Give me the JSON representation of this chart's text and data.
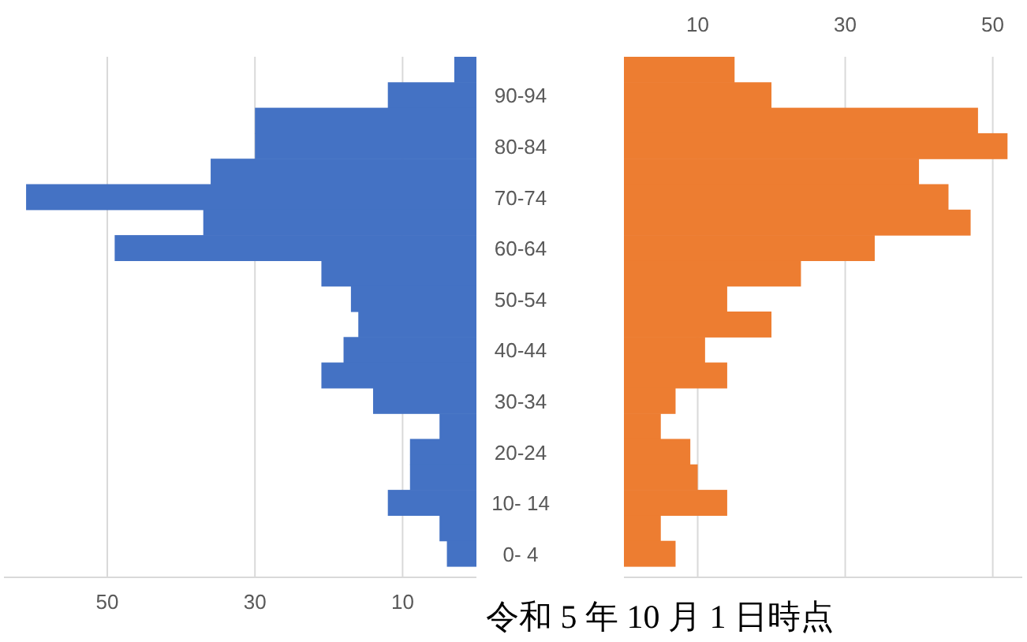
{
  "chart_data": [
    {
      "type": "bar",
      "orientation": "horizontal",
      "categories": [
        null,
        "90-94",
        null,
        "80-84",
        null,
        "70-74",
        null,
        "60-64",
        null,
        "50-54",
        null,
        "40-44",
        null,
        "30-34",
        null,
        "20-24",
        null,
        "10- 14",
        null,
        "0- 4"
      ],
      "values": [
        3,
        12,
        30,
        30,
        36,
        61,
        37,
        49,
        21,
        17,
        16,
        18,
        21,
        14,
        5,
        9,
        9,
        12,
        5,
        4
      ],
      "color": "#4472c4",
      "xlim": [
        64,
        0
      ],
      "xticks": [
        50,
        30,
        10
      ],
      "grid": "x"
    },
    {
      "type": "bar",
      "orientation": "horizontal",
      "categories": [
        null,
        null,
        null,
        null,
        null,
        null,
        null,
        null,
        null,
        null,
        null,
        null,
        null,
        null,
        null,
        null,
        null,
        null,
        null,
        null
      ],
      "values": [
        15,
        20,
        48,
        52,
        40,
        44,
        47,
        34,
        24,
        14,
        20,
        11,
        14,
        7,
        5,
        9,
        10,
        14,
        5,
        7
      ],
      "color": "#ed7d31",
      "xlim": [
        0,
        54
      ],
      "xticks": [
        10,
        30,
        50
      ],
      "grid": "x",
      "annotations": [
        "令和 5 年 10 月 1 日時点"
      ]
    }
  ]
}
